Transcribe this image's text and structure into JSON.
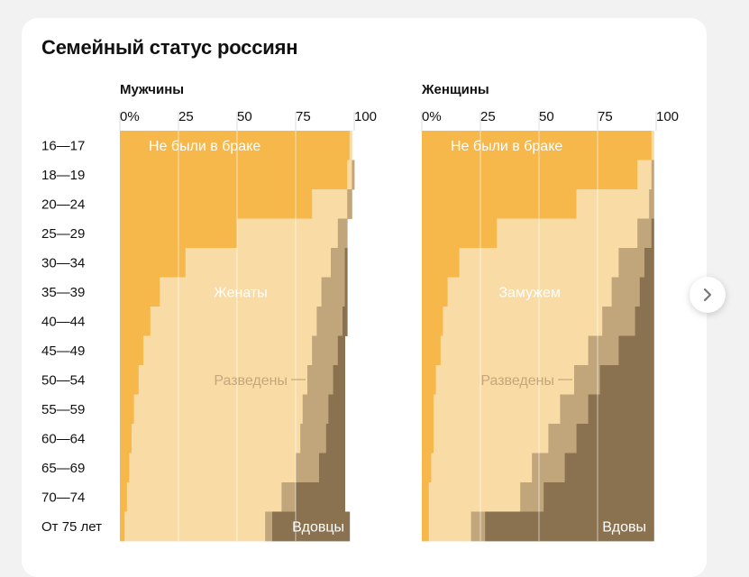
{
  "title": "Семейный статус россиян",
  "colors": {
    "never_married": "#f6b74b",
    "married": "#f9dba5",
    "divorced": "#c1a67b",
    "widowed": "#8a7250",
    "label_light": "#ffffff",
    "label_dark": "#c6a67a",
    "grid": "#ffffff"
  },
  "chart_data": [
    {
      "type": "bar",
      "stacked": true,
      "orientation": "horizontal",
      "panel_title": "Мужчины",
      "tick_labels": [
        "0%",
        "25",
        "50",
        "75",
        "100"
      ],
      "xlim": [
        0,
        100
      ],
      "categories": [
        "16—17",
        "18—19",
        "20—24",
        "25—29",
        "30—34",
        "35—39",
        "40—44",
        "45—49",
        "50—54",
        "55—59",
        "60—64",
        "65—69",
        "70—74",
        "От 75 лет"
      ],
      "series": [
        {
          "name": "Не были в браке",
          "values": [
            98,
            97,
            82,
            50,
            28,
            17,
            13,
            10,
            8,
            6,
            5,
            4,
            3,
            2
          ]
        },
        {
          "name": "Женаты",
          "values": [
            1,
            2,
            15,
            43,
            62,
            69,
            71,
            72,
            72,
            72,
            72,
            71,
            66,
            60
          ]
        },
        {
          "name": "Разведены",
          "values": [
            0,
            1,
            2,
            4,
            6,
            10,
            11,
            11,
            11,
            11,
            11,
            10,
            6,
            3
          ]
        },
        {
          "name": "Вдовцы",
          "values": [
            0,
            0,
            0,
            0,
            1,
            1,
            2,
            3,
            5,
            7,
            8,
            11,
            21,
            33
          ]
        }
      ],
      "annotations": [
        {
          "text": "Не были в браке",
          "series": "Не были в браке"
        },
        {
          "text": "Женаты",
          "series": "Женаты"
        },
        {
          "text": "Разведены",
          "series": "Разведены"
        },
        {
          "text": "Вдовцы",
          "series": "Вдовцы"
        }
      ]
    },
    {
      "type": "bar",
      "stacked": true,
      "orientation": "horizontal",
      "panel_title": "Женщины",
      "tick_labels": [
        "0%",
        "25",
        "50",
        "75",
        "100"
      ],
      "xlim": [
        0,
        100
      ],
      "categories": [
        "16—17",
        "18—19",
        "20—24",
        "25—29",
        "30—34",
        "35—39",
        "40—44",
        "45—49",
        "50—54",
        "55—59",
        "60—64",
        "65—69",
        "70—74",
        "От 75 лет"
      ],
      "series": [
        {
          "name": "Не были в браке",
          "values": [
            98,
            92,
            66,
            32,
            16,
            11,
            9,
            8,
            6,
            5,
            5,
            4,
            3,
            3
          ]
        },
        {
          "name": "Замужем",
          "values": [
            1,
            6,
            31,
            60,
            68,
            70,
            68,
            63,
            59,
            54,
            49,
            43,
            39,
            18
          ]
        },
        {
          "name": "Разведены",
          "values": [
            0,
            1,
            2,
            6,
            11,
            12,
            14,
            13,
            11,
            12,
            12,
            14,
            10,
            6
          ]
        },
        {
          "name": "Вдовы",
          "values": [
            0,
            0,
            0,
            1,
            4,
            6,
            8,
            15,
            23,
            28,
            33,
            38,
            47,
            72
          ]
        }
      ],
      "annotations": [
        {
          "text": "Не были в браке",
          "series": "Не были в браке"
        },
        {
          "text": "Замужем",
          "series": "Замужем"
        },
        {
          "text": "Разведены",
          "series": "Разведены"
        },
        {
          "text": "Вдовы",
          "series": "Вдовы"
        }
      ]
    }
  ],
  "navigation": {
    "next_icon": "chevron-right-icon"
  }
}
